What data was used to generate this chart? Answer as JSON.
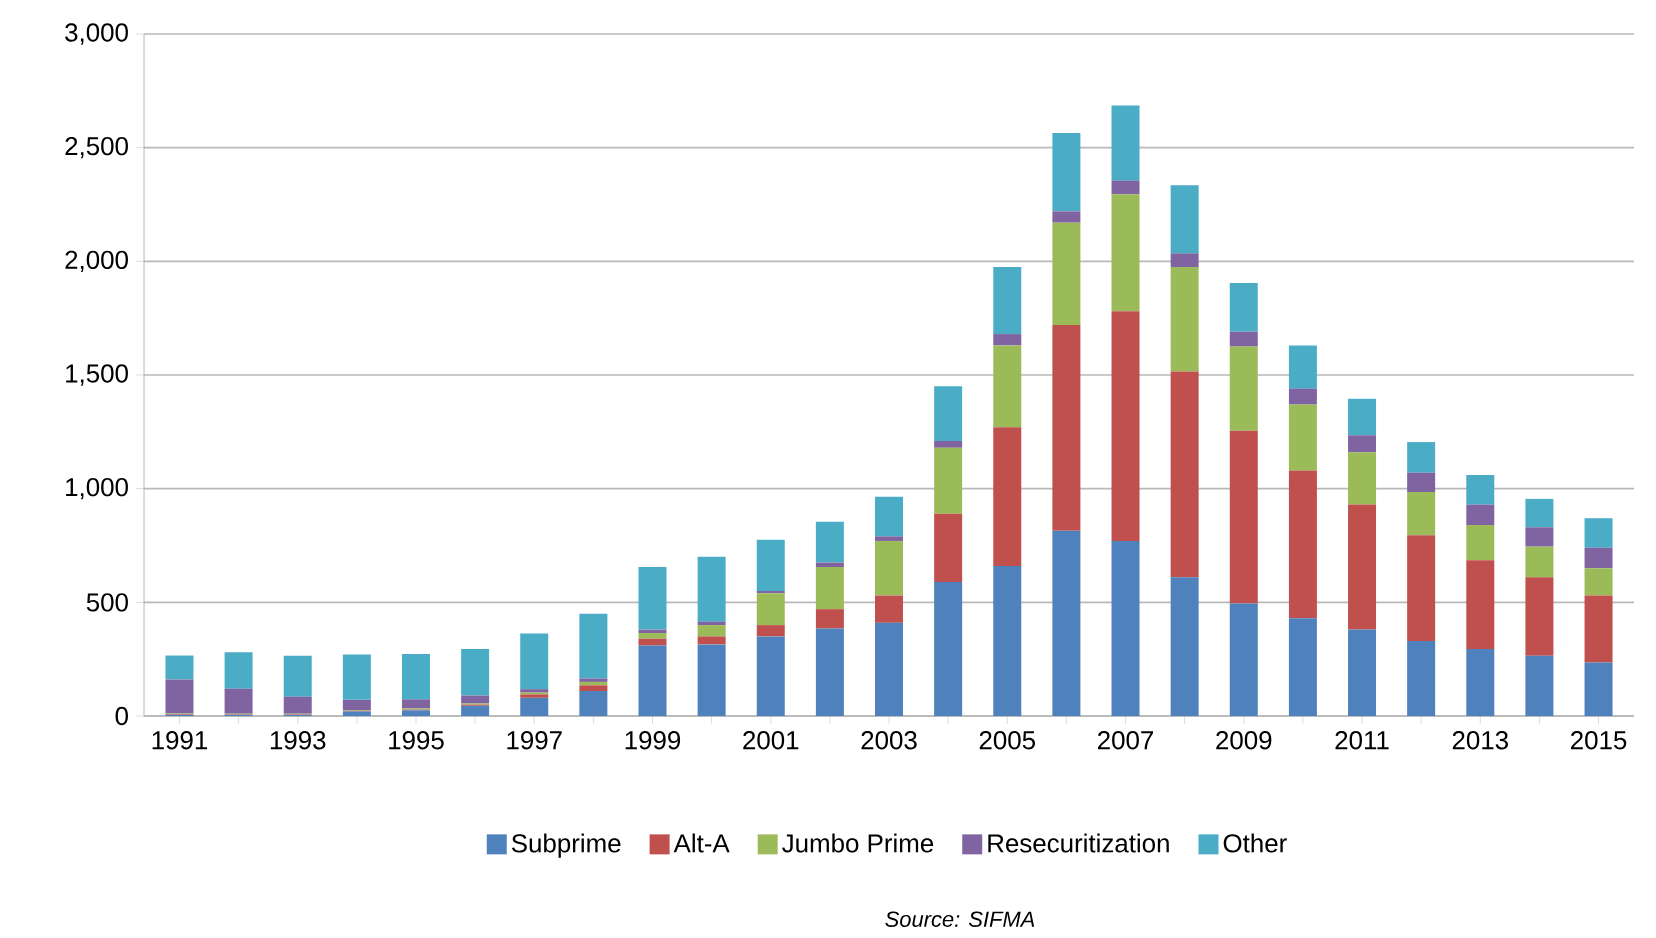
{
  "chart_data": {
    "type": "bar",
    "stacked": true,
    "grid": "y",
    "legend": "bottom",
    "categories": [
      "1991",
      null,
      "1993",
      null,
      "1995",
      null,
      "1997",
      null,
      "1999",
      null,
      "2001",
      null,
      "2003",
      null,
      "2005",
      null,
      "2007",
      null,
      "2009",
      null,
      "2011",
      null,
      "2013",
      null,
      "2015"
    ],
    "ylim": [
      0,
      3000
    ],
    "yticks": [
      0,
      500,
      {
        "value": 1000,
        "label": "1,000"
      },
      {
        "value": 1500,
        "label": "1,500"
      },
      {
        "value": 2000,
        "label": "2,000"
      },
      {
        "value": 2500,
        "label": "2,500"
      },
      {
        "value": 3000,
        "label": "3,000"
      }
    ],
    "series": [
      {
        "name": "Subprime",
        "color": "#4f81bd",
        "values": [
          5,
          5,
          5,
          20,
          25,
          45,
          80,
          110,
          310,
          315,
          350,
          385,
          410,
          590,
          660,
          815,
          770,
          610,
          495,
          430,
          380,
          330,
          295,
          265,
          235
        ]
      },
      {
        "name": "Alt-A",
        "color": "#c0504d",
        "values": [
          3,
          2,
          2,
          3,
          3,
          5,
          15,
          25,
          30,
          35,
          50,
          85,
          120,
          300,
          610,
          905,
          1010,
          905,
          760,
          650,
          550,
          465,
          390,
          345,
          295
        ]
      },
      {
        "name": "Jumbo Prime",
        "color": "#9bbb59",
        "values": [
          3,
          3,
          3,
          3,
          5,
          5,
          8,
          15,
          25,
          50,
          140,
          185,
          240,
          290,
          360,
          450,
          515,
          460,
          370,
          290,
          230,
          190,
          155,
          135,
          120
        ]
      },
      {
        "name": "Resecuritization",
        "color": "#8064a2",
        "values": [
          150,
          110,
          75,
          45,
          40,
          35,
          15,
          15,
          15,
          15,
          10,
          20,
          20,
          30,
          50,
          50,
          60,
          60,
          65,
          70,
          75,
          85,
          90,
          85,
          90
        ]
      },
      {
        "name": "Other",
        "color": "#4bacc6",
        "values": [
          105,
          160,
          180,
          200,
          200,
          205,
          245,
          285,
          275,
          285,
          225,
          180,
          175,
          240,
          295,
          345,
          330,
          300,
          215,
          190,
          160,
          135,
          130,
          125,
          130
        ]
      }
    ],
    "annotations": [
      "Source: SIFMA"
    ]
  }
}
